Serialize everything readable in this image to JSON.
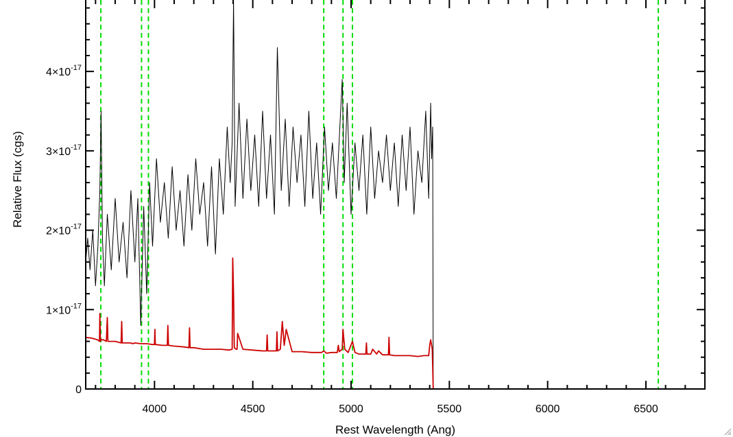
{
  "colors": {
    "observed": "#000000",
    "model": "#cc0000",
    "line_markers": "#00dd00",
    "axes": "#000000",
    "background": "#ffffff"
  },
  "chart_data": {
    "type": "line",
    "xlabel": "Rest Wavelength (Ang)",
    "ylabel": "Relative Flux (cgs)",
    "xlim": [
      3650,
      6800
    ],
    "ylim": [
      0,
      4.9e-17
    ],
    "grid": false,
    "x_ticks": [
      {
        "value": 4000,
        "label": "4000"
      },
      {
        "value": 4500,
        "label": "4500"
      },
      {
        "value": 5000,
        "label": "5000"
      },
      {
        "value": 5500,
        "label": "5500"
      },
      {
        "value": 6000,
        "label": "6000"
      },
      {
        "value": 6500,
        "label": "6500"
      }
    ],
    "y_ticks": [
      {
        "value": 0,
        "mantissa": "0",
        "exponent": ""
      },
      {
        "value": 1e-17,
        "mantissa": "1×10",
        "exponent": "-17"
      },
      {
        "value": 2e-17,
        "mantissa": "2×10",
        "exponent": "-17"
      },
      {
        "value": 3e-17,
        "mantissa": "3×10",
        "exponent": "-17"
      },
      {
        "value": 4e-17,
        "mantissa": "4×10",
        "exponent": "-17"
      }
    ],
    "vertical_markers": [
      3727,
      3934,
      3969,
      4861,
      4959,
      5007,
      6563
    ],
    "series": [
      {
        "role": "observed",
        "x": [
          3650,
          3660,
          3672,
          3686,
          3700,
          3712,
          3722,
          3728,
          3735,
          3745,
          3760,
          3780,
          3800,
          3820,
          3840,
          3860,
          3880,
          3900,
          3915,
          3930,
          3945,
          3960,
          3975,
          3990,
          4010,
          4030,
          4050,
          4070,
          4090,
          4110,
          4130,
          4150,
          4170,
          4190,
          4210,
          4230,
          4250,
          4270,
          4290,
          4310,
          4330,
          4350,
          4370,
          4385,
          4395,
          4402,
          4410,
          4430,
          4450,
          4470,
          4490,
          4510,
          4530,
          4550,
          4570,
          4590,
          4610,
          4625,
          4645,
          4665,
          4685,
          4705,
          4725,
          4745,
          4765,
          4785,
          4805,
          4825,
          4845,
          4865,
          4885,
          4905,
          4925,
          4945,
          4955,
          4965,
          4980,
          5000,
          5020,
          5040,
          5060,
          5080,
          5100,
          5120,
          5140,
          5160,
          5180,
          5200,
          5220,
          5240,
          5260,
          5280,
          5300,
          5320,
          5340,
          5360,
          5380,
          5395,
          5405,
          5410,
          5415,
          5418,
          5430,
          5600,
          5800,
          6000,
          6200,
          6400,
          6600,
          6800
        ],
        "y": [
          1.6e-17,
          1.9e-17,
          1.5e-17,
          2e-17,
          1.3e-17,
          1.8e-17,
          2.5e-17,
          3.5e-17,
          1.9e-17,
          1.3e-17,
          2.2e-17,
          1.5e-17,
          2.4e-17,
          1.6e-17,
          2.1e-17,
          1.4e-17,
          2.5e-17,
          1.6e-17,
          2.4e-17,
          8e-18,
          2.3e-17,
          1.2e-17,
          2.6e-17,
          1.8e-17,
          2.9e-17,
          2.1e-17,
          2.6e-17,
          1.9e-17,
          2.8e-17,
          2e-17,
          2.5e-17,
          1.8e-17,
          2.7e-17,
          2e-17,
          2.9e-17,
          2.2e-17,
          2.6e-17,
          1.8e-17,
          2.8e-17,
          1.7e-17,
          2.9e-17,
          2.2e-17,
          3.3e-17,
          2.6e-17,
          3.1e-17,
          4.9e-17,
          2.3e-17,
          3.6e-17,
          2.4e-17,
          3.4e-17,
          2.5e-17,
          3.2e-17,
          2.3e-17,
          3.5e-17,
          2.4e-17,
          3.2e-17,
          2.2e-17,
          4.3e-17,
          2.5e-17,
          3.4e-17,
          2.3e-17,
          3.3e-17,
          2.6e-17,
          3.2e-17,
          2.3e-17,
          3.5e-17,
          2.4e-17,
          3.1e-17,
          2.2e-17,
          3.3e-17,
          2.5e-17,
          3.1e-17,
          2.4e-17,
          3.4e-17,
          3.9e-17,
          2.6e-17,
          3.6e-17,
          2.2e-17,
          3.1e-17,
          2.5e-17,
          3.2e-17,
          2.2e-17,
          3.3e-17,
          2.4e-17,
          3e-17,
          2.6e-17,
          3.2e-17,
          2.5e-17,
          3.1e-17,
          2.3e-17,
          3.2e-17,
          2.5e-17,
          3.3e-17,
          2.2e-17,
          3e-17,
          2.6e-17,
          3.5e-17,
          2.4e-17,
          3.6e-17,
          2.9e-17,
          3.3e-17,
          0,
          0,
          0,
          0,
          0,
          0,
          0,
          0,
          0
        ]
      },
      {
        "role": "model",
        "x": [
          3650,
          3680,
          3710,
          3720,
          3722,
          3725,
          3728,
          3740,
          3755,
          3760,
          3763,
          3800,
          3830,
          3833,
          3836,
          3860,
          3880,
          3889,
          3900,
          3930,
          3960,
          3990,
          4000,
          4002,
          4004,
          4040,
          4065,
          4068,
          4071,
          4100,
          4150,
          4175,
          4178,
          4181,
          4200,
          4250,
          4300,
          4340,
          4380,
          4395,
          4398,
          4402,
          4406,
          4415,
          4420,
          4423,
          4450,
          4500,
          4550,
          4570,
          4573,
          4576,
          4600,
          4620,
          4623,
          4626,
          4640,
          4650,
          4660,
          4670,
          4700,
          4750,
          4800,
          4850,
          4861,
          4875,
          4900,
          4930,
          4935,
          4940,
          4955,
          4959,
          4968,
          4985,
          5007,
          5020,
          5040,
          5075,
          5078,
          5081,
          5100,
          5110,
          5130,
          5140,
          5160,
          5180,
          5190,
          5193,
          5196,
          5220,
          5260,
          5300,
          5340,
          5370,
          5395,
          5400,
          5405,
          5410,
          5413,
          5415,
          5418,
          5430,
          5600,
          5800,
          6000,
          6200,
          6400,
          6600,
          6800
        ],
        "y": [
          6.5e-18,
          6.4e-18,
          6.2e-18,
          6e-18,
          9.5e-18,
          6e-18,
          6.2e-18,
          6.2e-18,
          6e-18,
          9e-18,
          6e-18,
          6e-18,
          5.8e-18,
          8.5e-18,
          5.8e-18,
          5.8e-18,
          5.8e-18,
          5.7e-18,
          5.8e-18,
          5.7e-18,
          5.7e-18,
          5.6e-18,
          5.6e-18,
          7.5e-18,
          5.6e-18,
          5.5e-18,
          5.5e-18,
          8e-18,
          5.5e-18,
          5.4e-18,
          5.3e-18,
          5.2e-18,
          7.7e-18,
          5.2e-18,
          5.2e-18,
          5e-18,
          5e-18,
          5e-18,
          4.9e-18,
          5e-18,
          1.65e-17,
          1.2e-17,
          5.2e-18,
          5e-18,
          5e-18,
          7e-18,
          5e-18,
          4.9e-18,
          4.8e-18,
          4.8e-18,
          6.8e-18,
          4.8e-18,
          4.8e-18,
          4.8e-18,
          7.2e-18,
          4.8e-18,
          5e-18,
          8.5e-18,
          5.5e-18,
          7.5e-18,
          4.7e-18,
          4.7e-18,
          4.6e-18,
          4.6e-18,
          4.8e-18,
          4.5e-18,
          4.6e-18,
          4.6e-18,
          5.5e-18,
          4.7e-18,
          5e-18,
          7.5e-18,
          5e-18,
          4.6e-18,
          6e-18,
          4.6e-18,
          4.4e-18,
          4.4e-18,
          5.8e-18,
          4.4e-18,
          4.4e-18,
          5e-18,
          4.4e-18,
          4.8e-18,
          4.3e-18,
          4.3e-18,
          4.3e-18,
          6.5e-18,
          4.3e-18,
          4.2e-18,
          4.2e-18,
          4.2e-18,
          4.1e-18,
          4.2e-18,
          4.2e-18,
          5.5e-18,
          6.2e-18,
          5.5e-18,
          5e-18,
          3e-18,
          0,
          0,
          0,
          0,
          0,
          0,
          0,
          0,
          0
        ]
      }
    ]
  }
}
